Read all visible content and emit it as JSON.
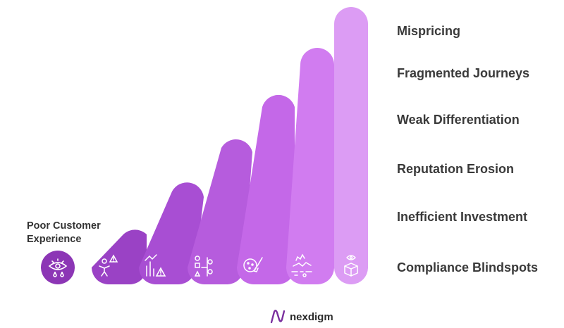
{
  "steps": [
    {
      "label": "Poor Customer",
      "label_line2": "Experience",
      "icon": "eye-with-drop-icon",
      "color": "#8c36b5"
    },
    {
      "label": "Compliance Blindspots",
      "icon": "person-warning-icon",
      "color": "#9a42c5"
    },
    {
      "label": "Inefficient Investment",
      "icon": "chart-warning-icon",
      "color": "#a84ed3"
    },
    {
      "label": "Reputation Erosion",
      "icon": "flowchart-icon",
      "color": "#b65cdd"
    },
    {
      "label": "Weak Differentiation",
      "icon": "cookie-brush-icon",
      "color": "#c468e8"
    },
    {
      "label": "Fragmented Journeys",
      "icon": "broken-path-icon",
      "color": "#d17cf0"
    },
    {
      "label": "Mispricing",
      "icon": "eye-box-icon",
      "color": "#dc9cf4"
    }
  ],
  "logo": {
    "text": "nexdigm",
    "icon": "n-logo-icon"
  }
}
